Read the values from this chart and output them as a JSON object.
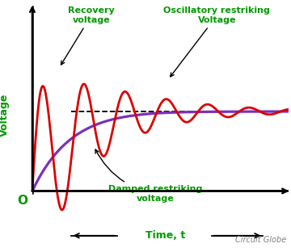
{
  "title": "",
  "xlabel": "Time, t",
  "ylabel": "Voltage",
  "background_color": "#ffffff",
  "axis_color": "#000000",
  "label_color": "#009900",
  "recovery_color": "#dd0000",
  "damped_color": "#7b2fbe",
  "dashed_color": "#000000",
  "origin_label": "O",
  "annotation_recovery": "Recovery\nvoltage",
  "annotation_oscillatory": "Oscillatory restriking\nVoltage",
  "annotation_damped": "Damped restriking\nvoltage",
  "watermark": "Circuit Globe",
  "xlim": [
    0,
    10
  ],
  "ylim": [
    -0.5,
    1.6
  ]
}
